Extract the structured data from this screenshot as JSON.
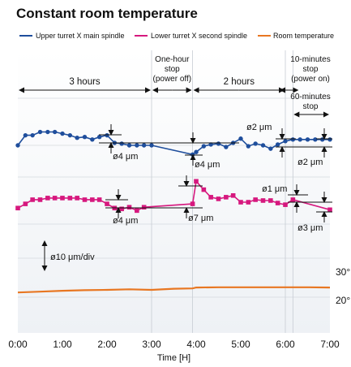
{
  "chart_data": {
    "type": "line",
    "title": "Constant room temperature",
    "xlabel": "Time [H]",
    "x_tick_labels": [
      "0:00",
      "1:00",
      "2:00",
      "3:00",
      "4:00",
      "5:00",
      "6:00",
      "7:00"
    ],
    "xlim": [
      0,
      7
    ],
    "right_tick_labels": [
      "30°",
      "20°"
    ],
    "grid": true,
    "legend_position": "top",
    "series": [
      {
        "name": "Upper turret X main spindle",
        "color": "#1f4e9c",
        "marker": "circle",
        "x": [
          0.0,
          0.17,
          0.33,
          0.5,
          0.67,
          0.83,
          1.0,
          1.17,
          1.33,
          1.5,
          1.67,
          1.83,
          2.0,
          2.17,
          2.33,
          2.5,
          2.67,
          2.83,
          3.0,
          3.92,
          4.0,
          4.17,
          4.33,
          4.5,
          4.67,
          4.83,
          5.0,
          5.17,
          5.33,
          5.5,
          5.67,
          5.83,
          6.0,
          6.17,
          6.33,
          6.5,
          6.67,
          6.83,
          7.0
        ],
        "y": [
          0.0,
          1.2,
          1.2,
          1.6,
          1.6,
          1.6,
          1.4,
          1.2,
          0.9,
          1.0,
          0.7,
          1.0,
          1.2,
          0.3,
          0.2,
          0.0,
          0.0,
          0.0,
          0.0,
          -1.1,
          -0.8,
          -0.1,
          0.1,
          0.2,
          -0.2,
          0.3,
          0.8,
          -0.1,
          0.2,
          0.0,
          -0.4,
          0.1,
          0.5,
          0.7,
          0.7,
          0.7,
          0.7,
          0.7,
          0.7
        ]
      },
      {
        "name": "Lower turret X second spindle",
        "color": "#d6187e",
        "marker": "square",
        "x": [
          0.0,
          0.17,
          0.33,
          0.5,
          0.67,
          0.83,
          1.0,
          1.17,
          1.33,
          1.5,
          1.67,
          1.83,
          2.0,
          2.17,
          2.33,
          2.5,
          2.67,
          2.83,
          3.92,
          4.0,
          4.17,
          4.33,
          4.5,
          4.67,
          4.83,
          5.0,
          5.17,
          5.33,
          5.5,
          5.67,
          5.83,
          6.0,
          6.17,
          7.0
        ],
        "y": [
          -7.5,
          -7.0,
          -6.5,
          -6.5,
          -6.3,
          -6.3,
          -6.3,
          -6.3,
          -6.3,
          -6.5,
          -6.5,
          -6.5,
          -7.0,
          -7.5,
          -7.6,
          -7.4,
          -7.8,
          -7.4,
          -7.0,
          -4.3,
          -5.3,
          -6.2,
          -6.4,
          -6.2,
          -6.0,
          -6.8,
          -6.8,
          -6.5,
          -6.6,
          -6.6,
          -6.9,
          -7.1,
          -6.5,
          -7.7
        ]
      },
      {
        "name": "Room temperature",
        "color": "#e87722",
        "marker": "none",
        "x": [
          0.0,
          0.5,
          1.0,
          1.5,
          2.0,
          2.5,
          3.0,
          3.5,
          3.92,
          4.0,
          4.5,
          5.0,
          5.5,
          6.0,
          6.5,
          7.0
        ],
        "y": [
          21.6,
          21.9,
          22.2,
          22.4,
          22.5,
          22.7,
          22.5,
          22.9,
          23.0,
          23.3,
          23.4,
          23.4,
          23.4,
          23.4,
          23.4,
          23.3
        ]
      }
    ],
    "phases": [
      {
        "label": "3 hours"
      },
      {
        "lines": [
          "One-hour",
          "stop",
          "(power off)"
        ]
      },
      {
        "label": "2 hours"
      },
      {
        "lines": [
          "10-minutes",
          "stop",
          "(power on)"
        ]
      },
      {
        "lines": [
          "60-minutes",
          "stop"
        ]
      }
    ],
    "annotations": {
      "scale": "ø10 μm/div",
      "upper": [
        "ø4 μm",
        "ø4 μm",
        "ø2 μm",
        "ø2 μm"
      ],
      "lower": [
        "ø4 μm",
        "ø7 μm",
        "ø1 μm",
        "ø3 μm"
      ]
    }
  }
}
